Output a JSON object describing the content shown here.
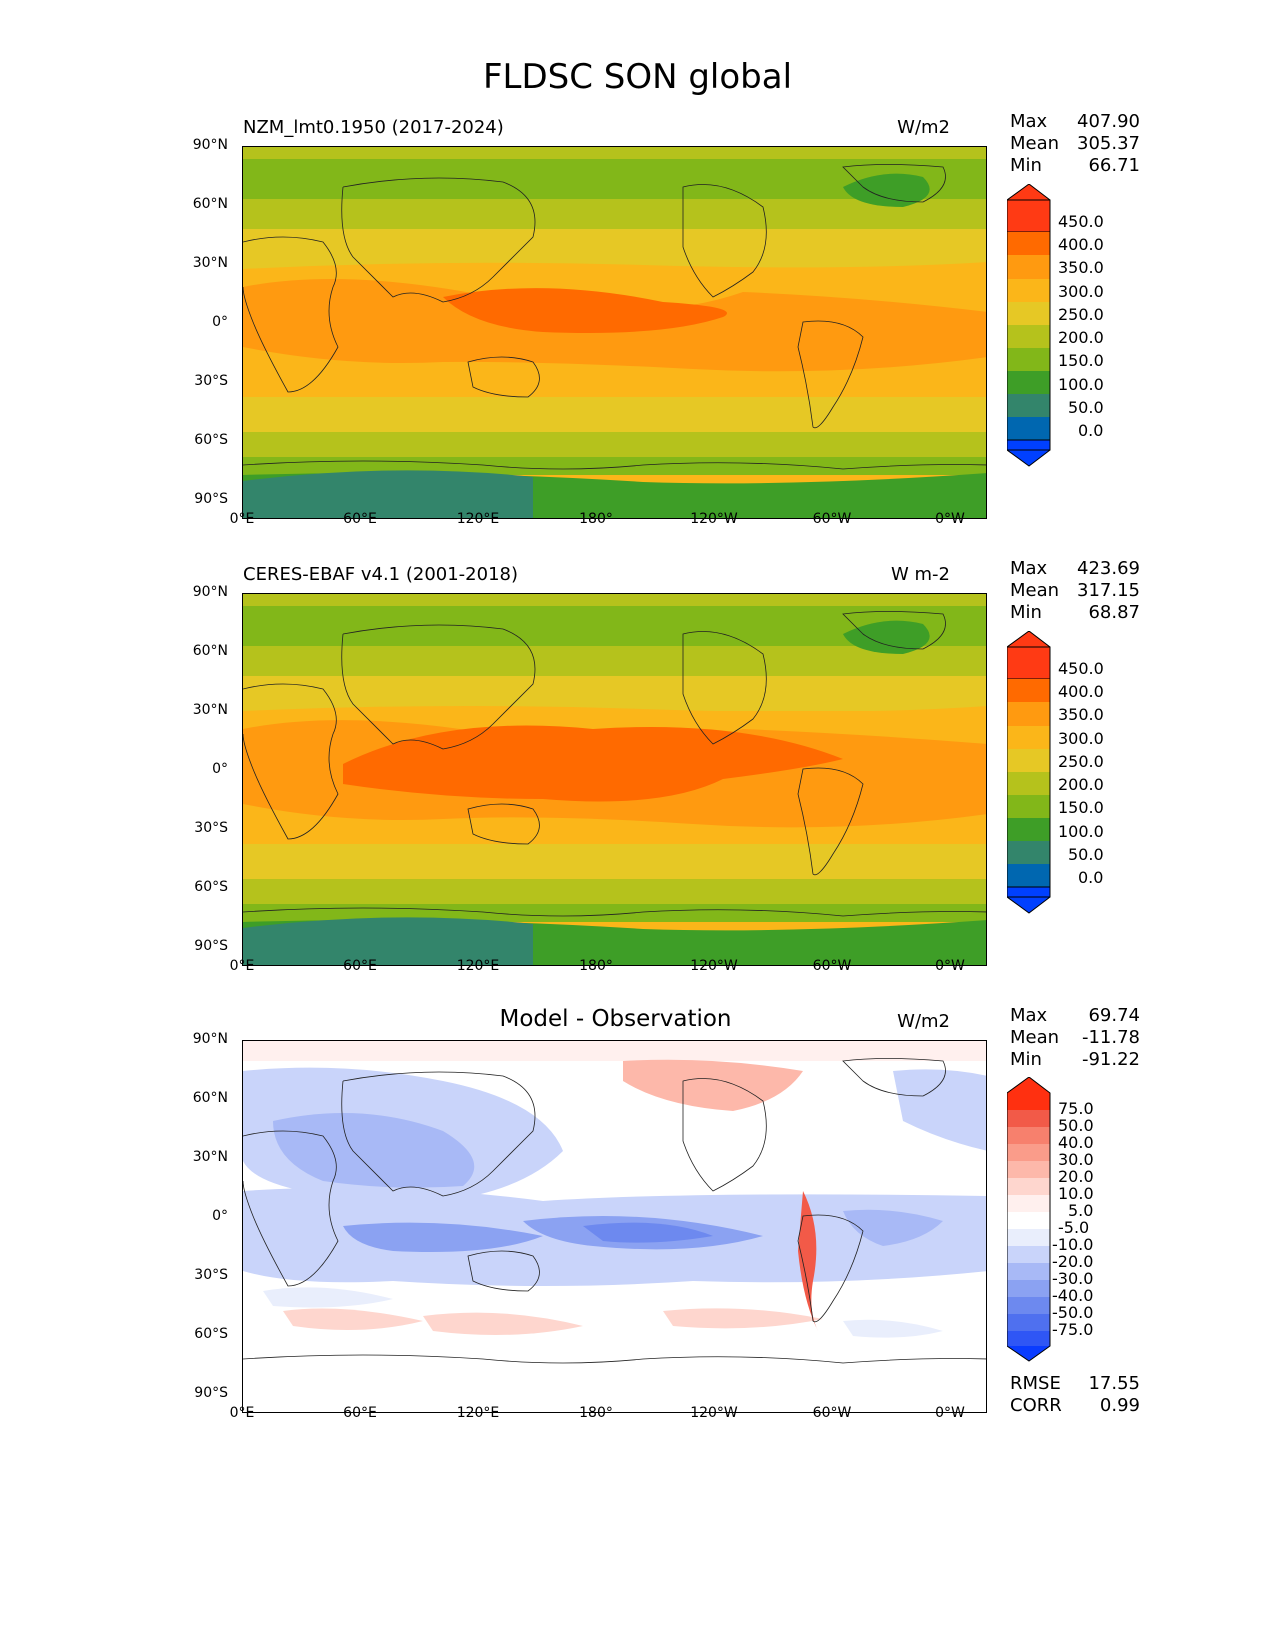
{
  "figure_title": "FLDSC SON global",
  "lat_ticks": [
    "90°N",
    "60°N",
    "30°N",
    "0°",
    "30°S",
    "60°S",
    "90°S"
  ],
  "lon_ticks": [
    "0°E",
    "60°E",
    "120°E",
    "180°",
    "120°W",
    "60°W",
    "0°W"
  ],
  "panels": [
    {
      "left_title": "NZM_lmt0.1950 (2017-2024)",
      "center_title": "",
      "units": "W/m2",
      "stats": {
        "max_label": "Max",
        "max": "407.90",
        "mean_label": "Mean",
        "mean": "305.37",
        "min_label": "Min",
        "min": "66.71"
      },
      "colorbar": [
        "450.0",
        "400.0",
        "350.0",
        "300.0",
        "250.0",
        "200.0",
        "150.0",
        "100.0",
        "50.0",
        "0.0"
      ],
      "colors": {
        "c450": "#ff3a14",
        "c400": "#ff6a00",
        "c350": "#ff9a10",
        "c300": "#fbb619",
        "c250": "#e6c825",
        "c200": "#b5c21c",
        "c150": "#82b719",
        "c100": "#3e9e27",
        "c50": "#33856b",
        "c0": "#0067b0",
        "under": "#0040ff"
      }
    },
    {
      "left_title": "CERES-EBAF v4.1 (2001-2018)",
      "center_title": "",
      "units": "W m-2",
      "stats": {
        "max_label": "Max",
        "max": "423.69",
        "mean_label": "Mean",
        "mean": "317.15",
        "min_label": "Min",
        "min": "68.87"
      },
      "colorbar": [
        "450.0",
        "400.0",
        "350.0",
        "300.0",
        "250.0",
        "200.0",
        "150.0",
        "100.0",
        "50.0",
        "0.0"
      ]
    },
    {
      "left_title": "",
      "center_title": "Model - Observation",
      "units": "W/m2",
      "stats": {
        "max_label": "Max",
        "max": "69.74",
        "mean_label": "Mean",
        "mean": "-11.78",
        "min_label": "Min",
        "min": "-91.22"
      },
      "colorbar": [
        "75.0",
        "50.0",
        "40.0",
        "30.0",
        "20.0",
        "10.0",
        "5.0",
        "-5.0",
        "-10.0",
        "-20.0",
        "-30.0",
        "-40.0",
        "-50.0",
        "-75.0"
      ],
      "rmse_label": "RMSE",
      "rmse": "17.55",
      "corr_label": "CORR",
      "corr": "0.99",
      "colors": {
        "r_hi": "#ff3010",
        "r75": "#f25a48",
        "r50": "#f7806d",
        "r40": "#fa9c8a",
        "r30": "#fdb8aa",
        "r20": "#fed6ce",
        "r10": "#fff0ee",
        "white": "#ffffff",
        "b5": "#e9eefc",
        "b10": "#c9d4fa",
        "b20": "#a8b9f6",
        "b30": "#8ba2f2",
        "b40": "#6d89ef",
        "b50": "#4f70ef",
        "b75": "#2f56f5",
        "b_lo": "#0a3cff"
      }
    }
  ],
  "chart_data": [
    {
      "type": "heatmap",
      "title": "NZM_lmt0.1950 (2017-2024)",
      "variable": "FLDSC",
      "season": "SON",
      "units": "W/m2",
      "max": 407.9,
      "mean": 305.37,
      "min": 66.71,
      "levels": [
        0,
        50,
        100,
        150,
        200,
        250,
        300,
        350,
        400,
        450
      ],
      "zonal_pattern": [
        {
          "lat": 90,
          "value": 180
        },
        {
          "lat": 70,
          "value": 200
        },
        {
          "lat": 60,
          "value": 240
        },
        {
          "lat": 45,
          "value": 300
        },
        {
          "lat": 30,
          "value": 340
        },
        {
          "lat": 15,
          "value": 380
        },
        {
          "lat": 0,
          "value": 390
        },
        {
          "lat": -15,
          "value": 370
        },
        {
          "lat": -30,
          "value": 330
        },
        {
          "lat": -45,
          "value": 280
        },
        {
          "lat": -55,
          "value": 230
        },
        {
          "lat": -65,
          "value": 180
        },
        {
          "lat": -75,
          "value": 100
        },
        {
          "lat": -90,
          "value": 70
        }
      ]
    },
    {
      "type": "heatmap",
      "title": "CERES-EBAF v4.1 (2001-2018)",
      "variable": "FLDSC",
      "season": "SON",
      "units": "W m-2",
      "max": 423.69,
      "mean": 317.15,
      "min": 68.87,
      "levels": [
        0,
        50,
        100,
        150,
        200,
        250,
        300,
        350,
        400,
        450
      ],
      "zonal_pattern": [
        {
          "lat": 90,
          "value": 190
        },
        {
          "lat": 70,
          "value": 210
        },
        {
          "lat": 60,
          "value": 250
        },
        {
          "lat": 45,
          "value": 310
        },
        {
          "lat": 30,
          "value": 360
        },
        {
          "lat": 15,
          "value": 400
        },
        {
          "lat": 0,
          "value": 405
        },
        {
          "lat": -15,
          "value": 385
        },
        {
          "lat": -30,
          "value": 340
        },
        {
          "lat": -45,
          "value": 290
        },
        {
          "lat": -55,
          "value": 240
        },
        {
          "lat": -65,
          "value": 190
        },
        {
          "lat": -75,
          "value": 110
        },
        {
          "lat": -90,
          "value": 75
        }
      ]
    },
    {
      "type": "heatmap",
      "title": "Model - Observation",
      "units": "W/m2",
      "max": 69.74,
      "mean": -11.78,
      "min": -91.22,
      "rmse": 17.55,
      "corr": 0.99,
      "levels": [
        -75,
        -50,
        -40,
        -30,
        -20,
        -10,
        -5,
        5,
        10,
        20,
        30,
        40,
        50,
        75
      ]
    }
  ]
}
